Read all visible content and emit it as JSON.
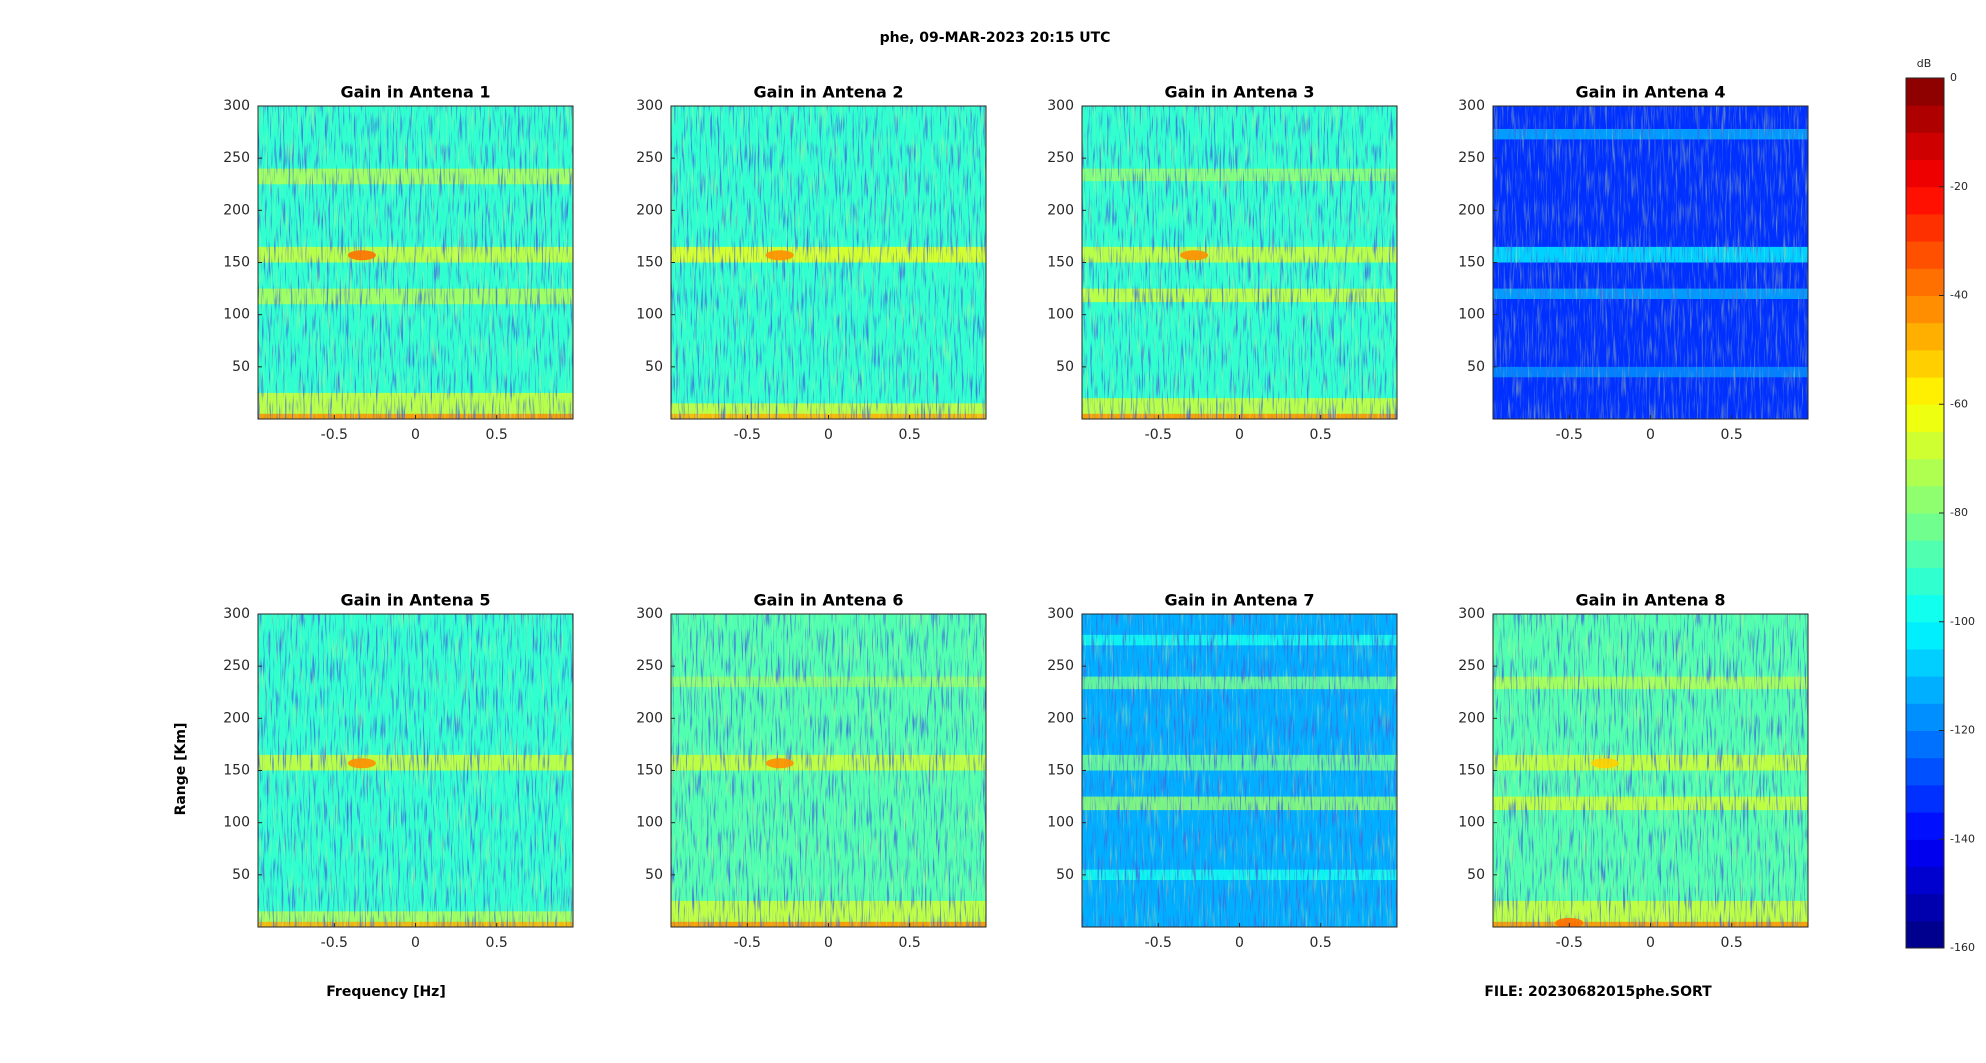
{
  "chart_data": [
    {
      "type": "heatmap",
      "title": "Gain in Antena 1",
      "xlim": [
        -0.97,
        0.97
      ],
      "xticks": [
        -0.5,
        0,
        0.5
      ],
      "ylim": [
        0,
        300
      ],
      "yticks": [
        50,
        100,
        150,
        200,
        250,
        300
      ],
      "background": -92,
      "bands": [
        {
          "range": [
            225,
            240
          ],
          "level": -75
        },
        {
          "range": [
            150,
            165
          ],
          "level": -68
        },
        {
          "range": [
            110,
            125
          ],
          "level": -72
        },
        {
          "range": [
            0,
            25
          ],
          "level": -70
        },
        {
          "range": [
            0,
            5
          ],
          "level": -45
        }
      ],
      "peaks": [
        {
          "x": -0.33,
          "range": 157,
          "level": -40
        }
      ]
    },
    {
      "type": "heatmap",
      "title": "Gain in Antena 2",
      "xlim": [
        -0.97,
        0.97
      ],
      "xticks": [
        -0.5,
        0,
        0.5
      ],
      "ylim": [
        0,
        300
      ],
      "yticks": [
        50,
        100,
        150,
        200,
        250,
        300
      ],
      "background": -92,
      "bands": [
        {
          "range": [
            150,
            165
          ],
          "level": -65
        },
        {
          "range": [
            0,
            15
          ],
          "level": -68
        },
        {
          "range": [
            0,
            5
          ],
          "level": -50
        }
      ],
      "peaks": [
        {
          "x": -0.3,
          "range": 157,
          "level": -42
        }
      ]
    },
    {
      "type": "heatmap",
      "title": "Gain in Antena 3",
      "xlim": [
        -0.97,
        0.97
      ],
      "xticks": [
        -0.5,
        0,
        0.5
      ],
      "ylim": [
        0,
        300
      ],
      "yticks": [
        50,
        100,
        150,
        200,
        250,
        300
      ],
      "background": -92,
      "bands": [
        {
          "range": [
            228,
            240
          ],
          "level": -80
        },
        {
          "range": [
            150,
            165
          ],
          "level": -66
        },
        {
          "range": [
            112,
            125
          ],
          "level": -70
        },
        {
          "range": [
            0,
            20
          ],
          "level": -68
        },
        {
          "range": [
            0,
            5
          ],
          "level": -45
        }
      ],
      "peaks": [
        {
          "x": -0.28,
          "range": 157,
          "level": -42
        }
      ]
    },
    {
      "type": "heatmap",
      "title": "Gain in Antena 4",
      "xlim": [
        -0.97,
        0.97
      ],
      "xticks": [
        -0.5,
        0,
        0.5
      ],
      "ylim": [
        0,
        300
      ],
      "yticks": [
        50,
        100,
        150,
        200,
        250,
        300
      ],
      "background": -135,
      "bands": [
        {
          "range": [
            268,
            278
          ],
          "level": -115
        },
        {
          "range": [
            150,
            165
          ],
          "level": -105
        },
        {
          "range": [
            115,
            125
          ],
          "level": -115
        },
        {
          "range": [
            40,
            50
          ],
          "level": -118
        }
      ],
      "peaks": []
    },
    {
      "type": "heatmap",
      "title": "Gain in Antena 5",
      "xlim": [
        -0.97,
        0.97
      ],
      "xticks": [
        -0.5,
        0,
        0.5
      ],
      "ylim": [
        0,
        300
      ],
      "yticks": [
        50,
        100,
        150,
        200,
        250,
        300
      ],
      "background": -92,
      "bands": [
        {
          "range": [
            150,
            165
          ],
          "level": -70
        },
        {
          "range": [
            0,
            15
          ],
          "level": -72
        },
        {
          "range": [
            0,
            5
          ],
          "level": -50
        }
      ],
      "peaks": [
        {
          "x": -0.33,
          "range": 157,
          "level": -45
        }
      ]
    },
    {
      "type": "heatmap",
      "title": "Gain in Antena 6",
      "xlim": [
        -0.97,
        0.97
      ],
      "xticks": [
        -0.5,
        0,
        0.5
      ],
      "ylim": [
        0,
        300
      ],
      "yticks": [
        50,
        100,
        150,
        200,
        250,
        300
      ],
      "background": -90,
      "bands": [
        {
          "range": [
            230,
            240
          ],
          "level": -80
        },
        {
          "range": [
            150,
            165
          ],
          "level": -70
        },
        {
          "range": [
            0,
            25
          ],
          "level": -68
        },
        {
          "range": [
            0,
            5
          ],
          "level": -45
        }
      ],
      "peaks": [
        {
          "x": -0.3,
          "range": 157,
          "level": -45
        }
      ]
    },
    {
      "type": "heatmap",
      "title": "Gain in Antena 7",
      "xlim": [
        -0.97,
        0.97
      ],
      "xticks": [
        -0.5,
        0,
        0.5
      ],
      "ylim": [
        0,
        300
      ],
      "yticks": [
        50,
        100,
        150,
        200,
        250,
        300
      ],
      "background": -112,
      "bands": [
        {
          "range": [
            270,
            280
          ],
          "level": -100
        },
        {
          "range": [
            228,
            240
          ],
          "level": -85
        },
        {
          "range": [
            150,
            165
          ],
          "level": -85
        },
        {
          "range": [
            112,
            125
          ],
          "level": -80
        },
        {
          "range": [
            45,
            55
          ],
          "level": -100
        }
      ],
      "peaks": []
    },
    {
      "type": "heatmap",
      "title": "Gain in Antena 8",
      "xlim": [
        -0.97,
        0.97
      ],
      "xticks": [
        -0.5,
        0,
        0.5
      ],
      "ylim": [
        0,
        300
      ],
      "yticks": [
        50,
        100,
        150,
        200,
        250,
        300
      ],
      "background": -90,
      "bands": [
        {
          "range": [
            228,
            240
          ],
          "level": -72
        },
        {
          "range": [
            150,
            165
          ],
          "level": -68
        },
        {
          "range": [
            112,
            125
          ],
          "level": -68
        },
        {
          "range": [
            0,
            25
          ],
          "level": -68
        },
        {
          "range": [
            0,
            5
          ],
          "level": -45
        }
      ],
      "peaks": [
        {
          "x": -0.5,
          "range": 4,
          "level": -40
        },
        {
          "x": -0.28,
          "range": 157,
          "level": -55
        }
      ]
    }
  ],
  "figure": {
    "title": "phe, 09-MAR-2023 20:15 UTC",
    "xlabel": "Frequency [Hz]",
    "ylabel": "Range [Km]",
    "footer": "FILE: 20230682015phe.SORT",
    "colorbar": {
      "label": "dB",
      "clim": [
        -160,
        0
      ],
      "ticks": [
        0,
        -20,
        -40,
        -60,
        -80,
        -100,
        -120,
        -140,
        -160
      ],
      "colormap": "jet"
    }
  }
}
